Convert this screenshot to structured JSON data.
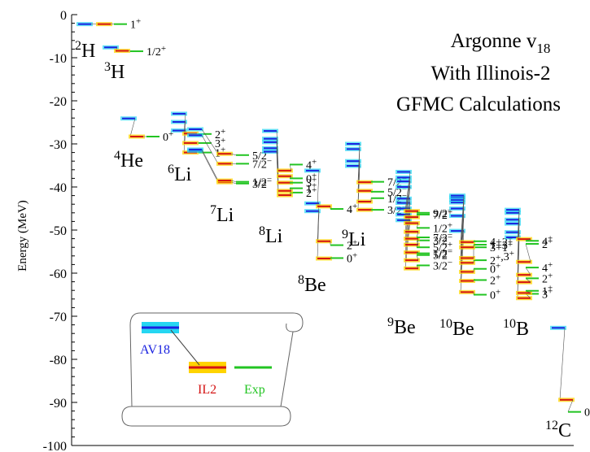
{
  "chart_data": {
    "type": "level-scheme",
    "title_lines": [
      "Argonne v18",
      "With Illinois-2",
      "GFMC Calculations"
    ],
    "ylabel": "Energy (MeV)",
    "ylim": [
      -100,
      0
    ],
    "yticks": [
      0,
      -10,
      -20,
      -30,
      -40,
      -50,
      -60,
      -70,
      -80,
      -90,
      -100
    ],
    "colors": {
      "AV18": "#1a22e0",
      "AV18_band": "#25d6f2",
      "IL2": "#d41414",
      "IL2_band": "#ffd400",
      "Exp": "#22c422"
    },
    "legend": {
      "av18": "AV18",
      "il2": "IL2",
      "exp": "Exp"
    },
    "nuclei": [
      {
        "mass": "2",
        "symbol": "H",
        "levels": [
          {
            "jp": "1+",
            "av18": -2.2,
            "il2": -2.2,
            "exp": -2.2
          }
        ]
      },
      {
        "mass": "3",
        "symbol": "H",
        "levels": [
          {
            "jp": "1/2+",
            "av18": -7.6,
            "il2": -8.4,
            "exp": -8.5
          }
        ]
      },
      {
        "mass": "4",
        "symbol": "He",
        "levels": [
          {
            "jp": "0+",
            "av18": -24.1,
            "il2": -28.3,
            "exp": -28.3
          }
        ]
      },
      {
        "mass": "6",
        "symbol": "Li",
        "levels": [
          {
            "jp": "1+",
            "av18": -26.9,
            "il2": -32.0,
            "exp": -32.0
          },
          {
            "jp": "3+",
            "av18": -24.9,
            "il2": -29.8,
            "exp": -29.8
          },
          {
            "jp": "2+",
            "av18": -23.0,
            "il2": -27.6,
            "exp": -27.7
          }
        ]
      },
      {
        "mass": "7",
        "symbol": "Li",
        "levels": [
          {
            "jp": "3/2-",
            "av18": -31.6,
            "il2": -38.9,
            "exp": -39.2
          },
          {
            "jp": "1/2-",
            "av18": -31.3,
            "il2": -38.5,
            "exp": -38.8
          },
          {
            "jp": "7/2-",
            "av18": -28.0,
            "il2": -34.6,
            "exp": -34.6
          },
          {
            "jp": "5/2-",
            "av18": -26.6,
            "il2": -32.3,
            "exp": -32.6
          }
        ]
      },
      {
        "mass": "8",
        "symbol": "Li",
        "levels": [
          {
            "jp": "2+",
            "av18": -31.8,
            "il2": -41.9,
            "exp": -41.3
          },
          {
            "jp": "1+",
            "av18": -31.0,
            "il2": -40.9,
            "exp": -40.3
          },
          {
            "jp": "3+",
            "av18": -29.6,
            "il2": -39.0,
            "exp": -39.0
          },
          {
            "jp": "0+",
            "av18": -28.8,
            "il2": -37.5,
            "exp": -38.0
          },
          {
            "jp": "4+",
            "av18": -27.0,
            "il2": -36.2,
            "exp": -34.8
          }
        ]
      },
      {
        "mass": "8",
        "symbol": "Be",
        "levels": [
          {
            "jp": "0+",
            "av18": -45.6,
            "il2": -56.6,
            "exp": -56.5
          },
          {
            "jp": "2+",
            "av18": -43.8,
            "il2": -52.6,
            "exp": -53.5
          },
          {
            "jp": "4+",
            "av18": -36.2,
            "il2": -44.5,
            "exp": -45.1
          }
        ]
      },
      {
        "mass": "9",
        "symbol": "Li",
        "levels": [
          {
            "jp": "3/2-",
            "av18": -35.1,
            "il2": -45.3,
            "exp": -45.3
          },
          {
            "jp": "1/2-",
            "av18": -34.0,
            "il2": -43.4,
            "exp": -42.6
          },
          {
            "jp": "5/2-",
            "av18": -31.2,
            "il2": -40.9,
            "exp": -41.1
          },
          {
            "jp": "7/2-",
            "av18": -30.0,
            "il2": -38.9,
            "exp": -38.8
          }
        ]
      },
      {
        "mass": "9",
        "symbol": "Be",
        "levels": [
          {
            "jp": "3/2-",
            "av18": -47.7,
            "il2": -58.9,
            "exp": -58.2
          },
          {
            "jp": "5/2-",
            "av18": -46.4,
            "il2": -57.0,
            "exp": -55.8
          },
          {
            "jp": "1/2-",
            "av18": -45.0,
            "il2": -55.2,
            "exp": -55.4
          },
          {
            "jp": "3/2-",
            "av18": -43.7,
            "il2": -53.4,
            "exp": -52.4
          },
          {
            "jp": "5/2+",
            "av18": -42.7,
            "il2": -52.0,
            "exp": -54.0
          },
          {
            "jp": "7/2-",
            "av18": -40.0,
            "il2": -50.4,
            "exp": -51.7
          },
          {
            "jp": "1/2+",
            "av18": -38.7,
            "il2": -48.4,
            "exp": -49.5
          },
          {
            "jp": "7/2+",
            "av18": -37.8,
            "il2": -47.0,
            "exp": -46.4
          },
          {
            "jp": "9/2-",
            "av18": -36.5,
            "il2": -45.6,
            "exp": -46.0
          }
        ]
      },
      {
        "mass": "10",
        "symbol": "Be",
        "levels": [
          {
            "jp": "0+",
            "av18": -50.2,
            "il2": -64.4,
            "exp": -65.0
          },
          {
            "jp": "2+",
            "av18": -46.7,
            "il2": -61.8,
            "exp": -61.6
          },
          {
            "jp": "0+",
            "av18": -45.0,
            "il2": -59.7,
            "exp": -59.0
          },
          {
            "jp": "2+,3+",
            "av18": -43.6,
            "il2": -57.6,
            "exp": -57.0
          },
          {
            "jp": "3+1+",
            "av18": -43.0,
            "il2": -56.5,
            "exp": -54.0
          },
          {
            "jp": "1+3+",
            "av18": -42.4,
            "il2": -54.0,
            "exp": -53.4
          },
          {
            "jp": "4+2+",
            "av18": -42.0,
            "il2": -52.8,
            "exp": -52.6
          }
        ]
      },
      {
        "mass": "10",
        "symbol": "B",
        "levels": [
          {
            "jp": "3+",
            "av18": -51.7,
            "il2": -65.8,
            "exp": -64.8
          },
          {
            "jp": "1+",
            "av18": -50.5,
            "il2": -64.6,
            "exp": -64.1
          },
          {
            "jp": "2+",
            "av18": -48.5,
            "il2": -62.1,
            "exp": -61.2
          },
          {
            "jp": "4+",
            "av18": -47.6,
            "il2": -60.4,
            "exp": -58.7
          },
          {
            "jp": "2+",
            "av18": -46.0,
            "il2": -57.4,
            "exp": -53.2
          },
          {
            "jp": "4+",
            "av18": -45.3,
            "il2": -52.1,
            "exp": -52.5
          }
        ]
      },
      {
        "mass": "12",
        "symbol": "C",
        "levels": [
          {
            "jp": "0+",
            "av18": -72.7,
            "il2": -89.4,
            "exp": -92.2
          }
        ]
      }
    ]
  }
}
